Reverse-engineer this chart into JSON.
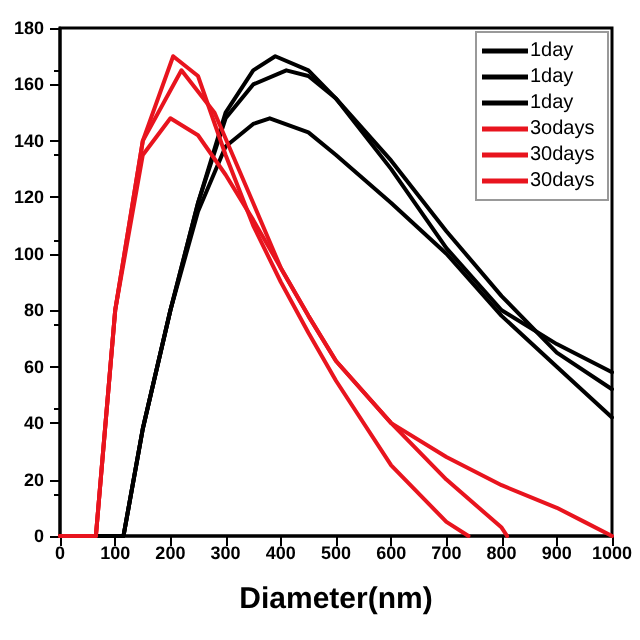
{
  "chart_data": {
    "type": "line",
    "xlabel": "Diameter(nm)",
    "xlim": [
      0,
      1000
    ],
    "xticks": [
      0,
      100,
      200,
      300,
      400,
      500,
      600,
      700,
      800,
      900,
      1000
    ],
    "ylim": [
      0,
      180
    ],
    "yticks": [
      0,
      20,
      40,
      60,
      80,
      100,
      120,
      140,
      160,
      180
    ],
    "grid": false,
    "legend": "top right",
    "marker": "none",
    "line_style": "solid",
    "series": [
      {
        "name": "1day",
        "color": "#000000",
        "x": [
          0,
          115,
          150,
          200,
          250,
          300,
          350,
          390,
          450,
          500,
          600,
          700,
          800,
          900,
          1000
        ],
        "values": [
          0,
          0,
          38,
          80,
          118,
          150,
          165,
          170,
          165,
          155,
          130,
          102,
          80,
          68,
          58
        ]
      },
      {
        "name": "1day",
        "color": "#000000",
        "x": [
          0,
          115,
          150,
          200,
          250,
          300,
          350,
          410,
          450,
          500,
          600,
          700,
          800,
          900,
          1000
        ],
        "values": [
          0,
          0,
          38,
          80,
          118,
          148,
          160,
          165,
          163,
          155,
          133,
          108,
          85,
          65,
          52
        ]
      },
      {
        "name": "1day",
        "color": "#000000",
        "x": [
          0,
          115,
          150,
          200,
          250,
          300,
          350,
          380,
          450,
          500,
          600,
          700,
          800,
          900,
          1000
        ],
        "values": [
          0,
          0,
          38,
          80,
          115,
          138,
          146,
          148,
          143,
          135,
          118,
          100,
          78,
          60,
          42
        ]
      },
      {
        "name": "3odays",
        "color": "#e8141e",
        "x": [
          0,
          65,
          100,
          150,
          205,
          250,
          300,
          350,
          400,
          450,
          500,
          600,
          700,
          740
        ],
        "values": [
          0,
          0,
          80,
          140,
          170,
          163,
          135,
          110,
          90,
          72,
          55,
          25,
          5,
          0
        ]
      },
      {
        "name": "30days",
        "color": "#e8141e",
        "x": [
          0,
          65,
          100,
          150,
          220,
          280,
          350,
          400,
          450,
          500,
          600,
          700,
          800,
          810
        ],
        "values": [
          0,
          0,
          80,
          140,
          165,
          150,
          118,
          95,
          78,
          62,
          40,
          20,
          3,
          0
        ]
      },
      {
        "name": "30days",
        "color": "#e8141e",
        "x": [
          0,
          65,
          100,
          150,
          200,
          250,
          300,
          350,
          400,
          450,
          500,
          600,
          700,
          800,
          900,
          950,
          1000
        ],
        "values": [
          0,
          0,
          80,
          135,
          148,
          142,
          128,
          112,
          95,
          78,
          62,
          40,
          28,
          18,
          10,
          5,
          0
        ]
      }
    ]
  }
}
